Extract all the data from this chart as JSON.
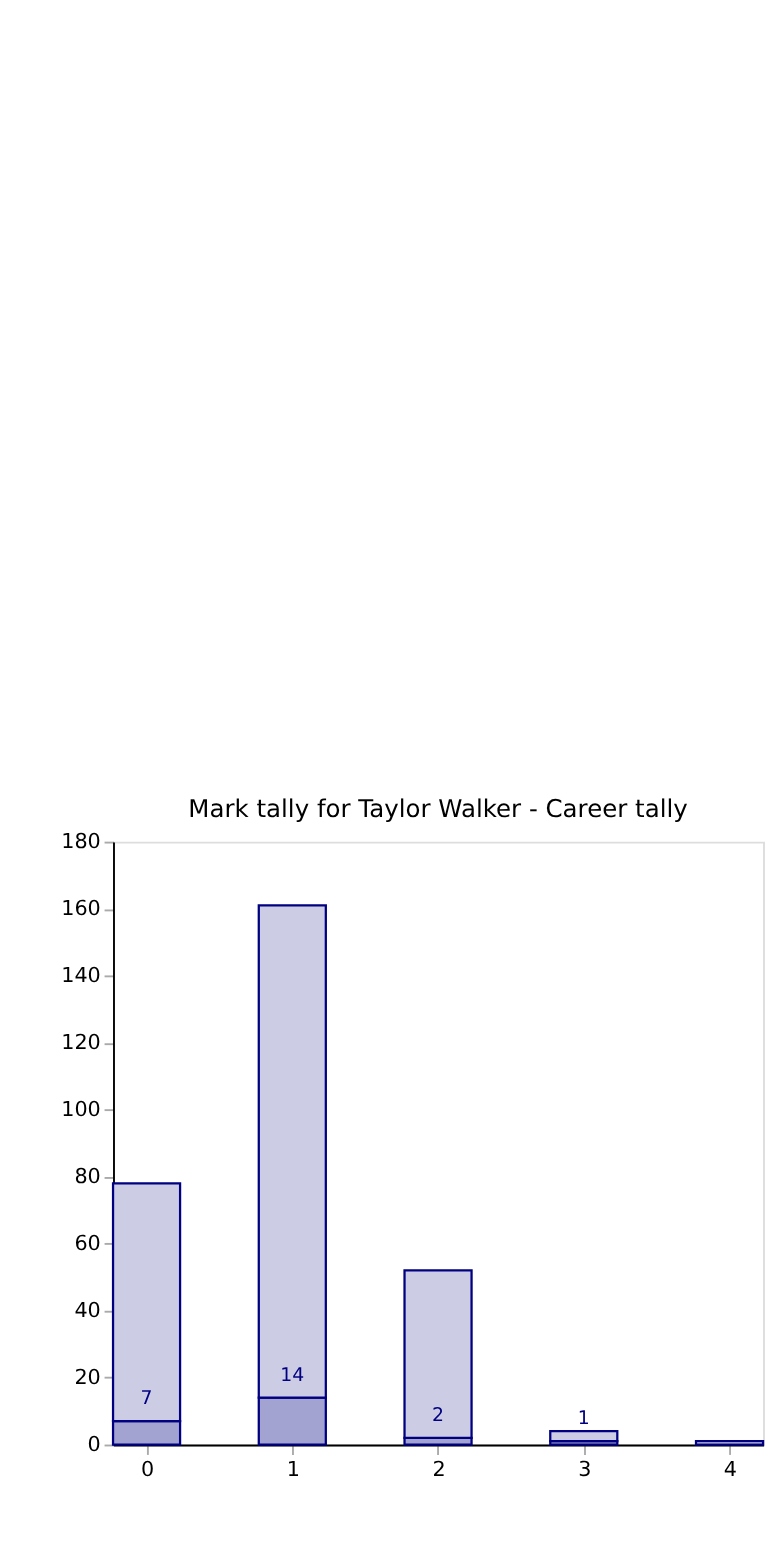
{
  "chart_data": {
    "type": "bar",
    "title": "Mark tally for Taylor Walker - Career tally",
    "stacked": true,
    "x": [
      0,
      1,
      2,
      3,
      4
    ],
    "series": [
      {
        "color": "#a3a3d1",
        "values": [
          7,
          14,
          2,
          1,
          null
        ],
        "value_labels": [
          "7",
          "14",
          "2",
          "1",
          null
        ]
      },
      {
        "color": "#ccccE5",
        "values": [
          71,
          147,
          50,
          3,
          1
        ]
      }
    ],
    "xlim": [
      -0.23,
      4.23
    ],
    "xticks": [
      0,
      1,
      2,
      3,
      4
    ],
    "ylim": [
      0,
      180
    ],
    "yticks": [
      0,
      20,
      40,
      60,
      80,
      100,
      120,
      140,
      160,
      180
    ],
    "grid": false
  }
}
